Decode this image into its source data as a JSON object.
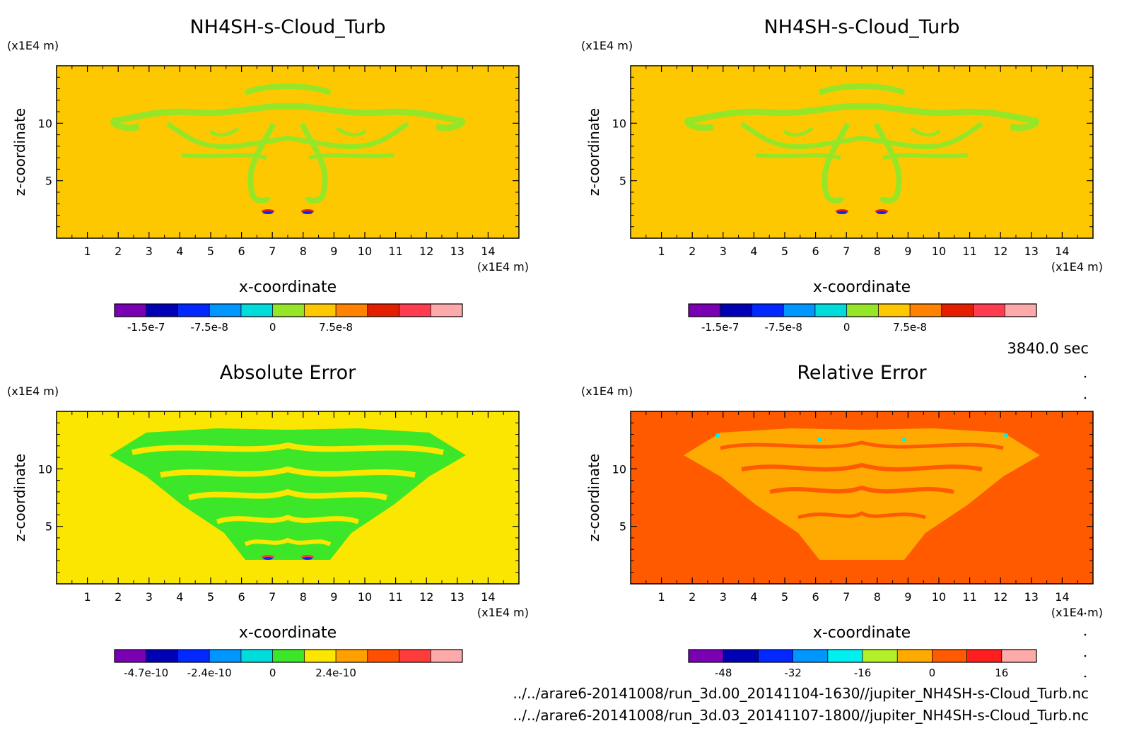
{
  "time_label": "3840.0 sec",
  "files": [
    "../../arare6-20141008/run_3d.00_20141104-1630//jupiter_NH4SH-s-Cloud_Turb.nc",
    "../../arare6-20141008/run_3d.03_20141107-1800//jupiter_NH4SH-s-Cloud_Turb.nc"
  ],
  "chart_data": [
    {
      "type": "heatmap",
      "title": "NH4SH-s-Cloud_Turb",
      "xlabel": "x-coordinate",
      "ylabel": "z-coordinate",
      "x_unit": "(x1E4 m)",
      "z_unit": "(x1E4 m)",
      "xlim": [
        0,
        15
      ],
      "ylim": [
        0,
        15
      ],
      "x_ticks": [
        "1",
        "2",
        "3",
        "4",
        "5",
        "6",
        "7",
        "8",
        "9",
        "10",
        "11",
        "12",
        "13",
        "14"
      ],
      "y_ticks": [
        "5",
        "10"
      ],
      "background_color": "#fec800",
      "feature_color": "#96e628",
      "colorbar": {
        "colors": [
          "#7a00b4",
          "#0000b4",
          "#0028ff",
          "#0096ff",
          "#00dcdc",
          "#96e628",
          "#fec800",
          "#ff8200",
          "#e61e00",
          "#ff3c50",
          "#ffaaaa"
        ],
        "labels": [
          "-1.5e-7",
          "-7.5e-8",
          "0",
          "7.5e-8"
        ]
      }
    },
    {
      "type": "heatmap",
      "title": "NH4SH-s-Cloud_Turb",
      "xlabel": "x-coordinate",
      "ylabel": "z-coordinate",
      "x_unit": "(x1E4 m)",
      "z_unit": "(x1E4 m)",
      "xlim": [
        0,
        15
      ],
      "ylim": [
        0,
        15
      ],
      "x_ticks": [
        "1",
        "2",
        "3",
        "4",
        "5",
        "6",
        "7",
        "8",
        "9",
        "10",
        "11",
        "12",
        "13",
        "14"
      ],
      "y_ticks": [
        "5",
        "10"
      ],
      "background_color": "#fec800",
      "feature_color": "#96e628",
      "colorbar": {
        "colors": [
          "#7a00b4",
          "#0000b4",
          "#0028ff",
          "#0096ff",
          "#00dcdc",
          "#96e628",
          "#fec800",
          "#ff8200",
          "#e61e00",
          "#ff3c50",
          "#ffaaaa"
        ],
        "labels": [
          "-1.5e-7",
          "-7.5e-8",
          "0",
          "7.5e-8"
        ]
      }
    },
    {
      "type": "heatmap",
      "title": "Absolute Error",
      "xlabel": "x-coordinate",
      "ylabel": "z-coordinate",
      "x_unit": "(x1E4 m)",
      "z_unit": "(x1E4 m)",
      "xlim": [
        0,
        15
      ],
      "ylim": [
        0,
        15
      ],
      "x_ticks": [
        "1",
        "2",
        "3",
        "4",
        "5",
        "6",
        "7",
        "8",
        "9",
        "10",
        "11",
        "12",
        "13",
        "14"
      ],
      "y_ticks": [
        "5",
        "10"
      ],
      "background_color": "#fae600",
      "feature_color": "#3ce628",
      "colorbar": {
        "colors": [
          "#7a00b4",
          "#0000b4",
          "#0028ff",
          "#0096ff",
          "#00dcdc",
          "#3ce628",
          "#fae600",
          "#ffa000",
          "#ff5000",
          "#ff3c3c",
          "#ffaaaa"
        ],
        "labels": [
          "-4.7e-10",
          "-2.4e-10",
          "0",
          "2.4e-10"
        ]
      }
    },
    {
      "type": "heatmap",
      "title": "Relative Error",
      "xlabel": "x-coordinate",
      "ylabel": "z-coordinate",
      "x_unit": "(x1E4 m)",
      "z_unit": "(x1E4 m)",
      "xlim": [
        0,
        15
      ],
      "ylim": [
        0,
        15
      ],
      "x_ticks": [
        "1",
        "2",
        "3",
        "4",
        "5",
        "6",
        "7",
        "8",
        "9",
        "10",
        "11",
        "12",
        "13",
        "14"
      ],
      "y_ticks": [
        "5",
        "10"
      ],
      "background_color": "#ff5a00",
      "feature_color": "#ffaa00",
      "colorbar": {
        "colors": [
          "#7a00b4",
          "#0000b4",
          "#0028ff",
          "#0096ff",
          "#00f0f0",
          "#b4f028",
          "#ffaa00",
          "#ff5a00",
          "#ff1e1e",
          "#ffaaaa"
        ],
        "labels": [
          "-48",
          "-32",
          "-16",
          "0",
          "16"
        ]
      }
    }
  ]
}
